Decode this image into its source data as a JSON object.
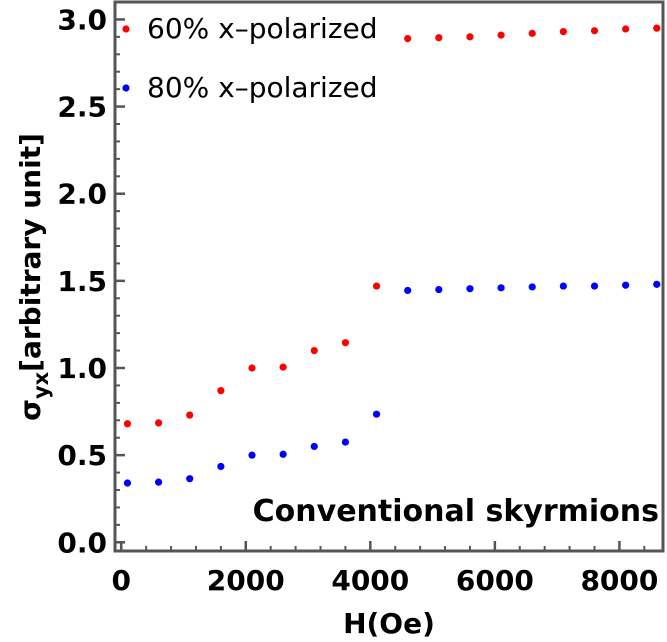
{
  "chart_data": {
    "type": "scatter",
    "title": "",
    "xlabel": "H(Oe)",
    "ylabel_main": "σ",
    "ylabel_sub": "yx",
    "ylabel_rest": "[arbitrary unit]",
    "xlim": [
      -100,
      8700
    ],
    "ylim": [
      -0.05,
      3.1
    ],
    "x_ticks": [
      0,
      2000,
      4000,
      6000,
      8000
    ],
    "x_tick_labels": [
      "0",
      "2000",
      "4000",
      "6000",
      "8000"
    ],
    "y_ticks": [
      0.0,
      0.5,
      1.0,
      1.5,
      2.0,
      2.5,
      3.0
    ],
    "y_tick_labels": [
      "0.0",
      "0.5",
      "1.0",
      "1.5",
      "2.0",
      "2.5",
      "3.0"
    ],
    "x": [
      100,
      600,
      1100,
      1600,
      2100,
      2600,
      3100,
      3600,
      4100,
      4600,
      5100,
      5600,
      6100,
      6600,
      7100,
      7600,
      8100,
      8600
    ],
    "series": [
      {
        "name": "60% x–polarized",
        "color": "#ff0000",
        "values": [
          0.68,
          0.685,
          0.73,
          0.87,
          1.0,
          1.005,
          1.1,
          1.145,
          1.47,
          2.89,
          2.895,
          2.9,
          2.91,
          2.92,
          2.93,
          2.935,
          2.945,
          2.95
        ]
      },
      {
        "name": "80% x–polarized",
        "color": "#0000ff",
        "values": [
          0.34,
          0.345,
          0.365,
          0.435,
          0.5,
          0.505,
          0.55,
          0.575,
          0.735,
          1.445,
          1.45,
          1.455,
          1.46,
          1.465,
          1.47,
          1.47,
          1.475,
          1.48
        ]
      }
    ],
    "legend_position": "top-left",
    "annotation": "Conventional skyrmions",
    "grid": false
  }
}
